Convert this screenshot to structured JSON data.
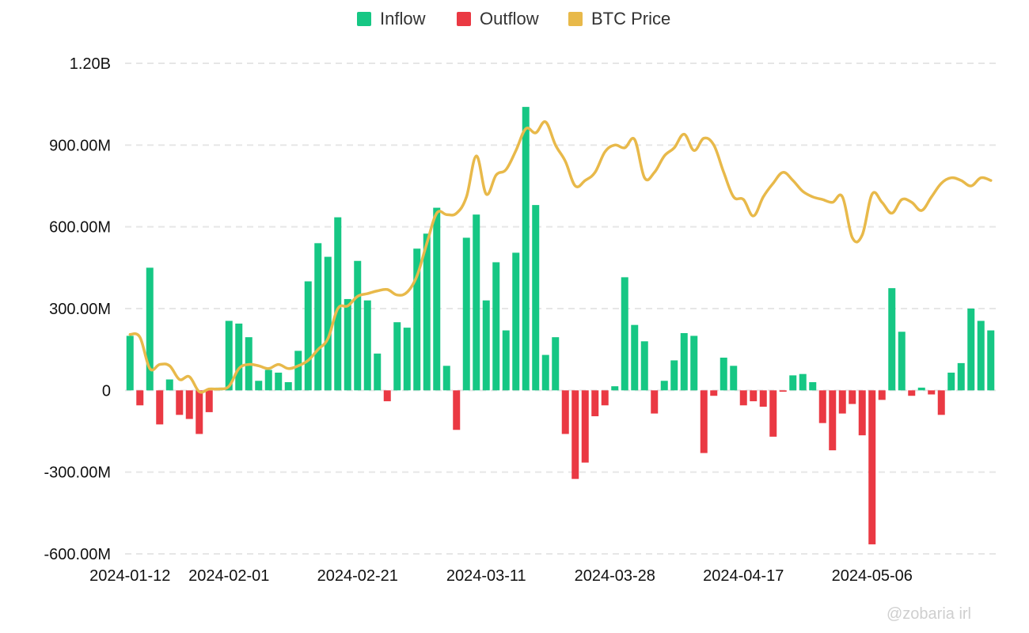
{
  "watermark": "@zobaria irl",
  "colors": {
    "inflow": "#16c784",
    "outflow": "#ea3943",
    "price": "#e8b94a"
  },
  "chart_data": {
    "type": "bar",
    "title": "",
    "xlabel": "",
    "ylabel": "",
    "legend": {
      "position": "top-center"
    },
    "ylim": [
      -600000000,
      1200000000
    ],
    "y_ticks": [
      {
        "value": 1200000000,
        "label": "1.20B"
      },
      {
        "value": 900000000,
        "label": "900.00M"
      },
      {
        "value": 600000000,
        "label": "600.00M"
      },
      {
        "value": 300000000,
        "label": "300.00M"
      },
      {
        "value": 0,
        "label": "0"
      },
      {
        "value": -300000000,
        "label": "-300.00M"
      },
      {
        "value": -600000000,
        "label": "-600.00M"
      }
    ],
    "x_tick_labels": [
      "2024-01-12",
      "2024-02-01",
      "2024-02-21",
      "2024-03-11",
      "2024-03-28",
      "2024-04-17",
      "2024-05-06"
    ],
    "x_tick_indices": [
      0,
      10,
      23,
      36,
      49,
      62,
      75
    ],
    "series": [
      {
        "name": "Inflow",
        "kind": "bar",
        "color": "#16c784"
      },
      {
        "name": "Outflow",
        "kind": "bar",
        "color": "#ea3943"
      },
      {
        "name": "BTC Price",
        "kind": "line",
        "color": "#e8b94a"
      }
    ],
    "net_flow_musd": [
      200,
      -55,
      450,
      -125,
      40,
      -90,
      -105,
      -160,
      -80,
      10,
      255,
      245,
      195,
      35,
      75,
      65,
      30,
      145,
      400,
      540,
      490,
      635,
      335,
      475,
      330,
      135,
      -40,
      250,
      230,
      520,
      575,
      670,
      90,
      -145,
      560,
      645,
      330,
      470,
      220,
      505,
      1040,
      680,
      130,
      195,
      -160,
      -325,
      -265,
      -95,
      -55,
      15,
      415,
      240,
      180,
      -85,
      35,
      110,
      210,
      200,
      -230,
      -20,
      120,
      90,
      -55,
      -40,
      -60,
      -170,
      -5,
      55,
      60,
      30,
      -120,
      -220,
      -85,
      -50,
      -165,
      -565,
      -35,
      375,
      215,
      -20,
      10,
      -15,
      -90,
      65,
      100,
      300,
      255,
      220
    ],
    "btc_price_axis_units": [
      205,
      195,
      80,
      95,
      90,
      40,
      50,
      -5,
      5,
      5,
      15,
      80,
      95,
      90,
      80,
      95,
      80,
      90,
      110,
      150,
      190,
      300,
      310,
      345,
      355,
      365,
      370,
      350,
      360,
      420,
      540,
      650,
      645,
      650,
      710,
      860,
      720,
      790,
      810,
      880,
      960,
      945,
      985,
      900,
      840,
      750,
      770,
      800,
      875,
      900,
      890,
      920,
      780,
      800,
      860,
      890,
      940,
      880,
      925,
      900,
      800,
      710,
      700,
      640,
      710,
      760,
      800,
      770,
      730,
      710,
      700,
      690,
      710,
      560,
      570,
      720,
      690,
      650,
      700,
      690,
      660,
      710,
      760,
      780,
      770,
      750,
      780,
      770
    ]
  }
}
